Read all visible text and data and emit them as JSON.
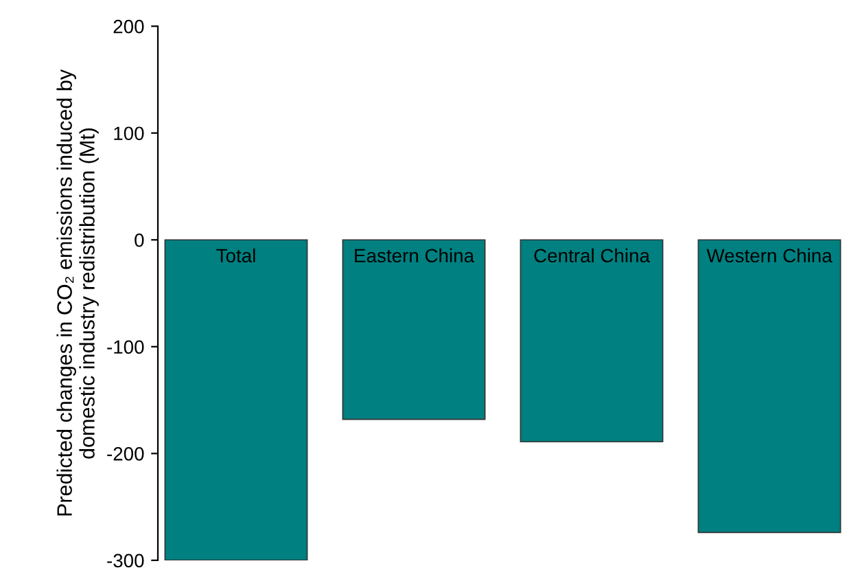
{
  "chart_data": {
    "type": "bar",
    "ylabel": "Predicted changes in CO₂ emissions induced by\ndomestic industry redistribution (Mt)",
    "categories": [
      "Total",
      "Eastern China",
      "Central China",
      "Western China"
    ],
    "values": [
      -300,
      -168,
      -189,
      -274
    ],
    "color": "#008080",
    "ylim": [
      -300,
      200
    ],
    "yticks": [
      -300,
      -200,
      -100,
      0,
      100,
      200
    ],
    "grid": false,
    "legend": false
  }
}
